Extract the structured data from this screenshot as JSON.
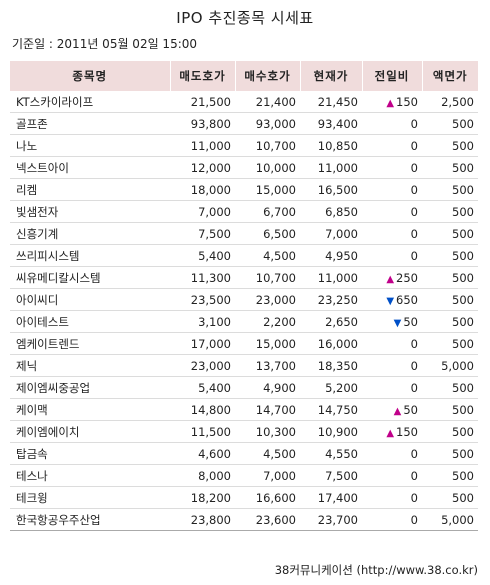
{
  "title": "IPO 추진종목 시세표",
  "base_date": "기준일 : 2011년 05월 02일 15:00",
  "headers": [
    "종목명",
    "매도호가",
    "매수호가",
    "현재가",
    "전일비",
    "액면가"
  ],
  "rows": [
    {
      "name": "KT스카이라이프",
      "sell": "21,500",
      "buy": "21,400",
      "price": "21,450",
      "dir": "up",
      "change": "150",
      "par": "2,500"
    },
    {
      "name": "골프존",
      "sell": "93,800",
      "buy": "93,000",
      "price": "93,400",
      "dir": "",
      "change": "0",
      "par": "500"
    },
    {
      "name": "나노",
      "sell": "11,000",
      "buy": "10,700",
      "price": "10,850",
      "dir": "",
      "change": "0",
      "par": "500"
    },
    {
      "name": "넥스트아이",
      "sell": "12,000",
      "buy": "10,000",
      "price": "11,000",
      "dir": "",
      "change": "0",
      "par": "500"
    },
    {
      "name": "리켐",
      "sell": "18,000",
      "buy": "15,000",
      "price": "16,500",
      "dir": "",
      "change": "0",
      "par": "500"
    },
    {
      "name": "빛샘전자",
      "sell": "7,000",
      "buy": "6,700",
      "price": "6,850",
      "dir": "",
      "change": "0",
      "par": "500"
    },
    {
      "name": "신흥기계",
      "sell": "7,500",
      "buy": "6,500",
      "price": "7,000",
      "dir": "",
      "change": "0",
      "par": "500"
    },
    {
      "name": "쓰리피시스템",
      "sell": "5,400",
      "buy": "4,500",
      "price": "4,950",
      "dir": "",
      "change": "0",
      "par": "500"
    },
    {
      "name": "씨유메디칼시스템",
      "sell": "11,300",
      "buy": "10,700",
      "price": "11,000",
      "dir": "up",
      "change": "250",
      "par": "500"
    },
    {
      "name": "아이씨디",
      "sell": "23,500",
      "buy": "23,000",
      "price": "23,250",
      "dir": "down",
      "change": "650",
      "par": "500"
    },
    {
      "name": "아이테스트",
      "sell": "3,100",
      "buy": "2,200",
      "price": "2,650",
      "dir": "down",
      "change": "50",
      "par": "500"
    },
    {
      "name": "엠케이트렌드",
      "sell": "17,000",
      "buy": "15,000",
      "price": "16,000",
      "dir": "",
      "change": "0",
      "par": "500"
    },
    {
      "name": "제닉",
      "sell": "23,000",
      "buy": "13,700",
      "price": "18,350",
      "dir": "",
      "change": "0",
      "par": "5,000"
    },
    {
      "name": "제이엠씨중공업",
      "sell": "5,400",
      "buy": "4,900",
      "price": "5,200",
      "dir": "",
      "change": "0",
      "par": "500"
    },
    {
      "name": "케이맥",
      "sell": "14,800",
      "buy": "14,700",
      "price": "14,750",
      "dir": "up",
      "change": "50",
      "par": "500"
    },
    {
      "name": "케이엠에이치",
      "sell": "11,500",
      "buy": "10,300",
      "price": "10,900",
      "dir": "up",
      "change": "150",
      "par": "500"
    },
    {
      "name": "탑금속",
      "sell": "4,600",
      "buy": "4,500",
      "price": "4,550",
      "dir": "",
      "change": "0",
      "par": "500"
    },
    {
      "name": "테스나",
      "sell": "8,000",
      "buy": "7,000",
      "price": "7,500",
      "dir": "",
      "change": "0",
      "par": "500"
    },
    {
      "name": "테크윙",
      "sell": "18,200",
      "buy": "16,600",
      "price": "17,400",
      "dir": "",
      "change": "0",
      "par": "500"
    },
    {
      "name": "한국항공우주산업",
      "sell": "23,800",
      "buy": "23,600",
      "price": "23,700",
      "dir": "",
      "change": "0",
      "par": "5,000"
    }
  ],
  "footer": "38커뮤니케이션 (http://www.38.co.kr)",
  "colors": {
    "header_bg": "#f0dcdc",
    "up": "#c0008a",
    "down": "#0050c8"
  }
}
